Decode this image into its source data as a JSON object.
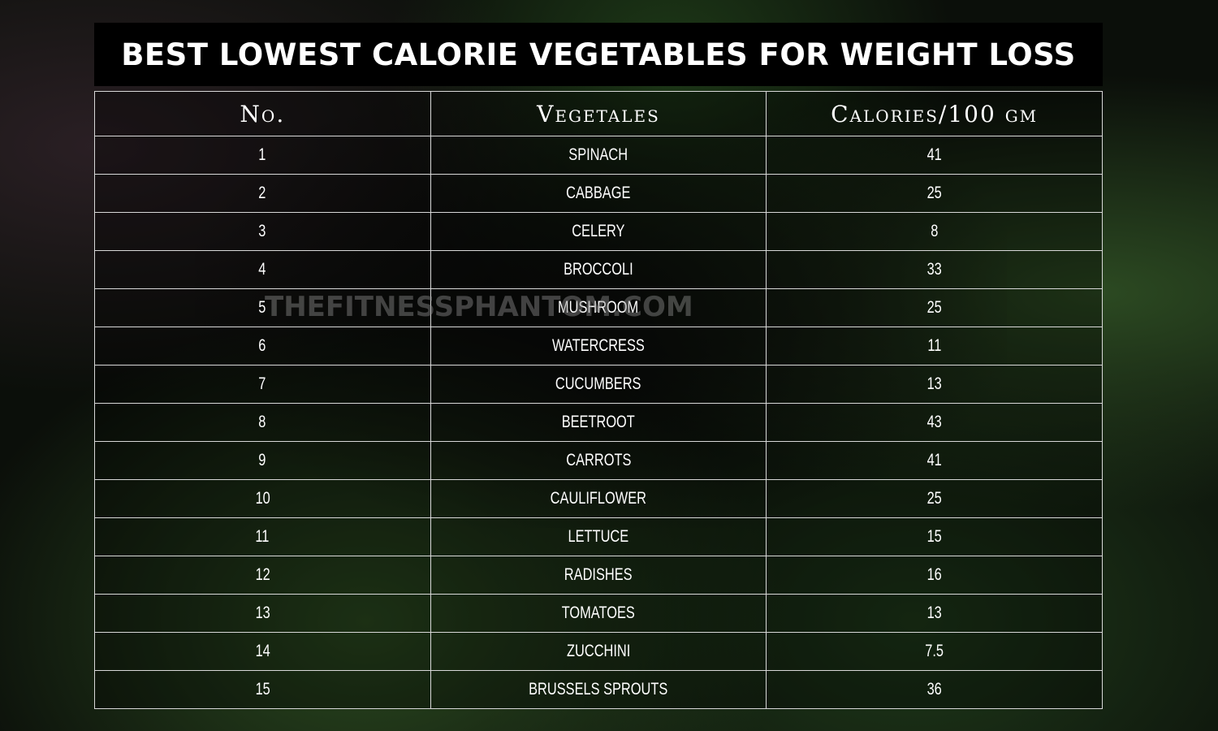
{
  "title": "BEST LOWEST CALORIE VEGETABLES FOR WEIGHT LOSS",
  "watermark": "THEFITNESSPHANTOM.COM",
  "table": {
    "headers": [
      "No.",
      "Vegetales",
      "Calories/100 gm"
    ],
    "rows": [
      {
        "no": "1",
        "name": "SPINACH",
        "calories": "41"
      },
      {
        "no": "2",
        "name": "CABBAGE",
        "calories": "25"
      },
      {
        "no": "3",
        "name": "CELERY",
        "calories": "8"
      },
      {
        "no": "4",
        "name": "BROCCOLI",
        "calories": "33"
      },
      {
        "no": "5",
        "name": "MUSHROOM",
        "calories": "25"
      },
      {
        "no": "6",
        "name": "WATERCRESS",
        "calories": "11"
      },
      {
        "no": "7",
        "name": "CUCUMBERS",
        "calories": "13"
      },
      {
        "no": "8",
        "name": "BEETROOT",
        "calories": "43"
      },
      {
        "no": "9",
        "name": "CARROTS",
        "calories": "41"
      },
      {
        "no": "10",
        "name": "CAULIFLOWER",
        "calories": "25"
      },
      {
        "no": "11",
        "name": "LETTUCE",
        "calories": "15"
      },
      {
        "no": "12",
        "name": "RADISHES",
        "calories": "16"
      },
      {
        "no": "13",
        "name": "TOMATOES",
        "calories": "13"
      },
      {
        "no": "14",
        "name": "ZUCCHINI",
        "calories": "7.5"
      },
      {
        "no": "15",
        "name": "BRUSSELS SPROUTS",
        "calories": "36"
      }
    ]
  }
}
